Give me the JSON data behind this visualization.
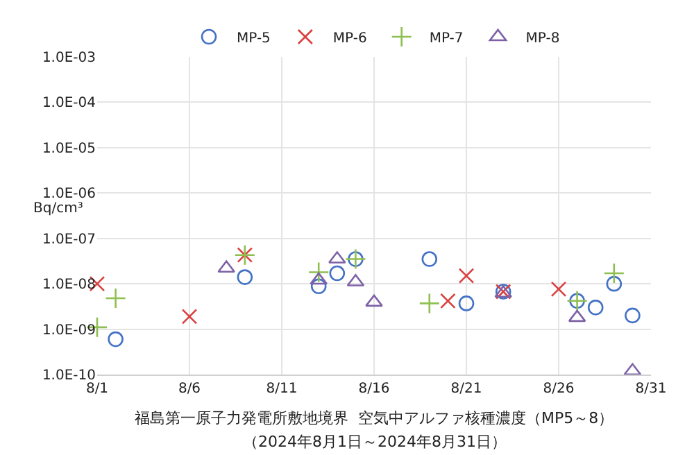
{
  "chart_data": {
    "type": "scatter",
    "title": "福島第一原子力発電所敷地境界  空気中アルファ核種濃度（MP5～8）",
    "subtitle": "（2024年8月1日～2024年8月31日）",
    "ylabel": "Bq/cm³",
    "series": [
      {
        "name": "MP-5",
        "color": "#4472c4",
        "marker": "circle",
        "x": [
          "2024-08-02",
          "2024-08-09",
          "2024-08-13",
          "2024-08-14",
          "2024-08-15",
          "2024-08-19",
          "2024-08-21",
          "2024-08-23",
          "2024-08-27",
          "2024-08-28",
          "2024-08-29",
          "2024-08-30"
        ],
        "values": [
          6e-10,
          1.4e-08,
          8.8e-09,
          1.7e-08,
          3.5e-08,
          3.5e-08,
          3.7e-09,
          6.7e-09,
          4.2e-09,
          3e-09,
          1e-08,
          2e-09
        ]
      },
      {
        "name": "MP-6",
        "color": "#d9413f",
        "marker": "x",
        "x": [
          "2024-08-01",
          "2024-08-06",
          "2024-08-09",
          "2024-08-20",
          "2024-08-21",
          "2024-08-23",
          "2024-08-26"
        ],
        "values": [
          1e-08,
          1.9e-09,
          4.3e-08,
          4.2e-09,
          1.5e-08,
          6.7e-09,
          7.6e-09
        ]
      },
      {
        "name": "MP-7",
        "color": "#8fbf50",
        "marker": "cross",
        "x": [
          "2024-08-01",
          "2024-08-02",
          "2024-08-09",
          "2024-08-13",
          "2024-08-15",
          "2024-08-19",
          "2024-08-27",
          "2024-08-29"
        ],
        "values": [
          1.1e-09,
          4.8e-09,
          4.3e-08,
          1.8e-08,
          3.5e-08,
          3.7e-09,
          4.2e-09,
          1.7e-08
        ]
      },
      {
        "name": "MP-8",
        "color": "#7e62a6",
        "marker": "triangle",
        "x": [
          "2024-08-08",
          "2024-08-13",
          "2024-08-14",
          "2024-08-15",
          "2024-08-16",
          "2024-08-23",
          "2024-08-27",
          "2024-08-30"
        ],
        "values": [
          2.2e-08,
          1.2e-08,
          3.5e-08,
          1.1e-08,
          3.9e-09,
          6.2e-09,
          1.8e-09,
          1.2e-10
        ]
      }
    ],
    "xlim": [
      "2024-08-01",
      "2024-08-31"
    ],
    "xticks": [
      {
        "value": "2024-08-01",
        "label": "8/1"
      },
      {
        "value": "2024-08-06",
        "label": "8/6"
      },
      {
        "value": "2024-08-11",
        "label": "8/11"
      },
      {
        "value": "2024-08-16",
        "label": "8/16"
      },
      {
        "value": "2024-08-21",
        "label": "8/21"
      },
      {
        "value": "2024-08-26",
        "label": "8/26"
      },
      {
        "value": "2024-08-31",
        "label": "8/31"
      }
    ],
    "ylim": [
      1e-10,
      0.001
    ],
    "yticks": [
      {
        "value": 1e-10,
        "label": "1.0E-10"
      },
      {
        "value": 1e-09,
        "label": "1.0E-09"
      },
      {
        "value": 1e-08,
        "label": "1.0E-08"
      },
      {
        "value": 1e-07,
        "label": "1.0E-07"
      },
      {
        "value": 1e-06,
        "label": "1.0E-06"
      },
      {
        "value": 1e-05,
        "label": "1.0E-05"
      },
      {
        "value": 0.0001,
        "label": "1.0E-04"
      },
      {
        "value": 0.001,
        "label": "1.0E-03"
      }
    ],
    "log": true,
    "grid": true,
    "legend": "top"
  }
}
